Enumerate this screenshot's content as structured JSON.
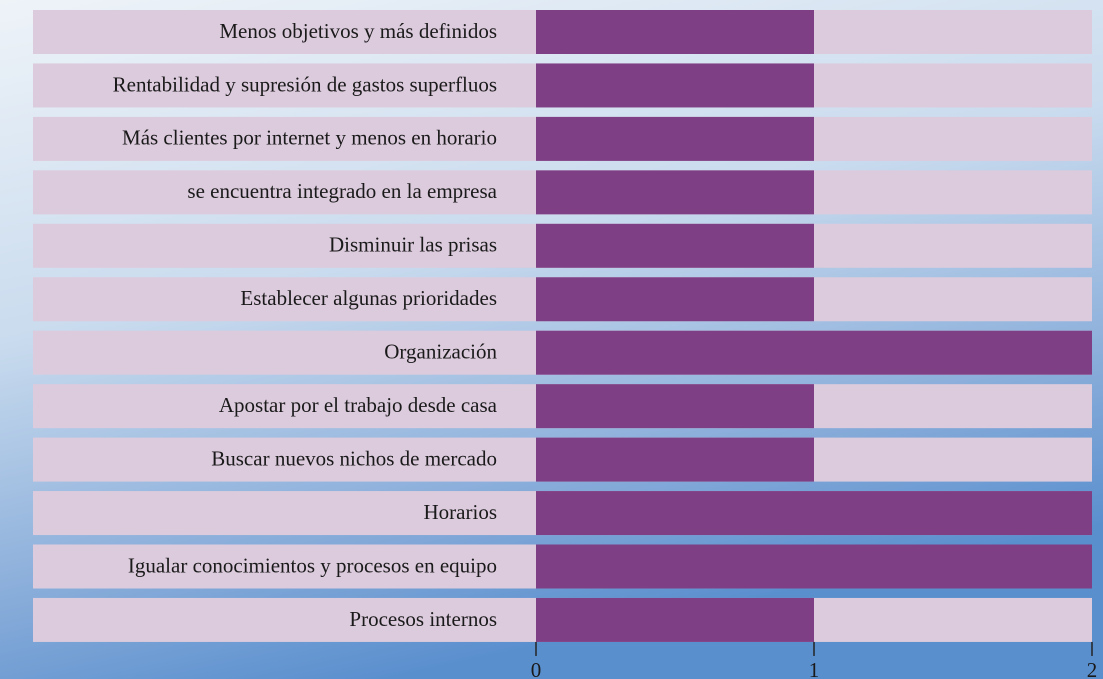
{
  "chart_data": {
    "type": "barh",
    "categories": [
      "Menos objetivos y más definidos",
      "Rentabilidad y supresión de gastos superfluos",
      "Más clientes por internet y menos en horario",
      "se encuentra integrado en la empresa",
      "Disminuir las prisas",
      "Establecer algunas prioridades",
      "Organización",
      "Apostar por el trabajo desde casa",
      "Buscar nuevos nichos de mercado",
      "Horarios",
      "Igualar conocimientos y procesos en equipo",
      "Procesos internos"
    ],
    "values": [
      1,
      1,
      1,
      1,
      1,
      1,
      2,
      1,
      1,
      2,
      2,
      1
    ],
    "color": "#7f3f84",
    "xlim": [
      0,
      2
    ],
    "xticks": [
      0,
      1,
      2
    ]
  }
}
